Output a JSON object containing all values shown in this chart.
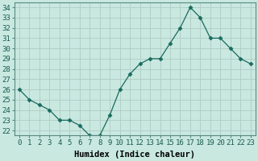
{
  "x": [
    0,
    1,
    2,
    3,
    4,
    5,
    6,
    7,
    8,
    9,
    10,
    11,
    12,
    13,
    14,
    15,
    16,
    17,
    18,
    19,
    20,
    21,
    22,
    23
  ],
  "y": [
    26,
    25,
    24.5,
    24,
    23,
    23,
    22.5,
    21.5,
    21.5,
    23.5,
    26,
    27.5,
    28.5,
    29,
    29,
    30.5,
    32,
    34,
    33,
    31,
    31,
    30,
    29,
    28.5
  ],
  "line_color": "#1a6b5e",
  "marker": "D",
  "marker_size": 2.5,
  "bg_color": "#c8e8e0",
  "grid_color": "#b0ccc4",
  "xlabel": "Humidex (Indice chaleur)",
  "xlim": [
    -0.5,
    23.5
  ],
  "ylim": [
    21.5,
    34.5
  ],
  "xticks": [
    0,
    1,
    2,
    3,
    4,
    5,
    6,
    7,
    8,
    9,
    10,
    11,
    12,
    13,
    14,
    15,
    16,
    17,
    18,
    19,
    20,
    21,
    22,
    23
  ],
  "yticks": [
    22,
    23,
    24,
    25,
    26,
    27,
    28,
    29,
    30,
    31,
    32,
    33,
    34
  ],
  "xlabel_fontsize": 7.5,
  "tick_fontsize": 6.5
}
